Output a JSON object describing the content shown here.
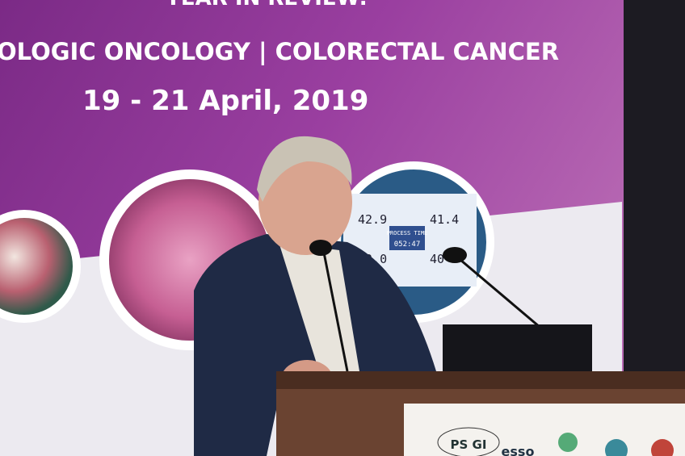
{
  "banner": {
    "heading": "YEAR IN REVIEW:",
    "subtitle": "OLOGIC ONCOLOGY | COLORECTAL CANCER",
    "date": "19 - 21 April, 2019"
  },
  "screen": {
    "readings": [
      "42.9",
      "41.4",
      "42.0",
      "40"
    ],
    "label": "PROCESS TIME",
    "time": "052:47"
  },
  "podium": {
    "logos": [
      "PS GI",
      "esso"
    ]
  }
}
